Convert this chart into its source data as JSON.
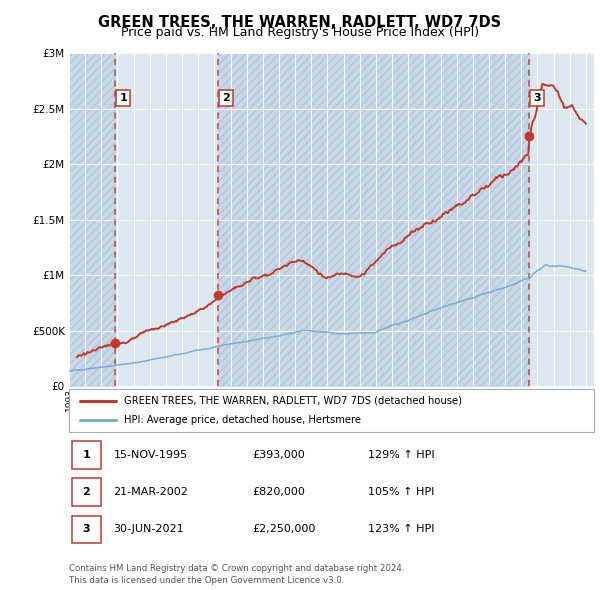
{
  "title": "GREEN TREES, THE WARREN, RADLETT, WD7 7DS",
  "subtitle": "Price paid vs. HM Land Registry's House Price Index (HPI)",
  "ylim": [
    0,
    3000000
  ],
  "yticks": [
    0,
    500000,
    1000000,
    1500000,
    2000000,
    2500000,
    3000000
  ],
  "xlim_start": 1993.0,
  "xlim_end": 2025.5,
  "sale_dates": [
    1995.875,
    2002.22,
    2021.5
  ],
  "sale_prices": [
    393000,
    820000,
    2250000
  ],
  "sale_labels": [
    "1",
    "2",
    "3"
  ],
  "vline_x": [
    1995.875,
    2002.22,
    2021.5
  ],
  "red_line_color": "#c0392b",
  "blue_line_color": "#85aacb",
  "dot_color": "#c0392b",
  "vline_color": "#c0392b",
  "background_color": "#dce8f0",
  "hatch_color": "#c8d8e8",
  "grid_color": "#ffffff",
  "legend_entries": [
    "GREEN TREES, THE WARREN, RADLETT, WD7 7DS (detached house)",
    "HPI: Average price, detached house, Hertsmere"
  ],
  "table_rows": [
    [
      "1",
      "15-NOV-1995",
      "£393,000",
      "129% ↑ HPI"
    ],
    [
      "2",
      "21-MAR-2002",
      "£820,000",
      "105% ↑ HPI"
    ],
    [
      "3",
      "30-JUN-2021",
      "£2,250,000",
      "123% ↑ HPI"
    ]
  ],
  "footnote1": "Contains HM Land Registry data © Crown copyright and database right 2024.",
  "footnote2": "This data is licensed under the Open Government Licence v3.0.",
  "title_fontsize": 10.5,
  "subtitle_fontsize": 9
}
